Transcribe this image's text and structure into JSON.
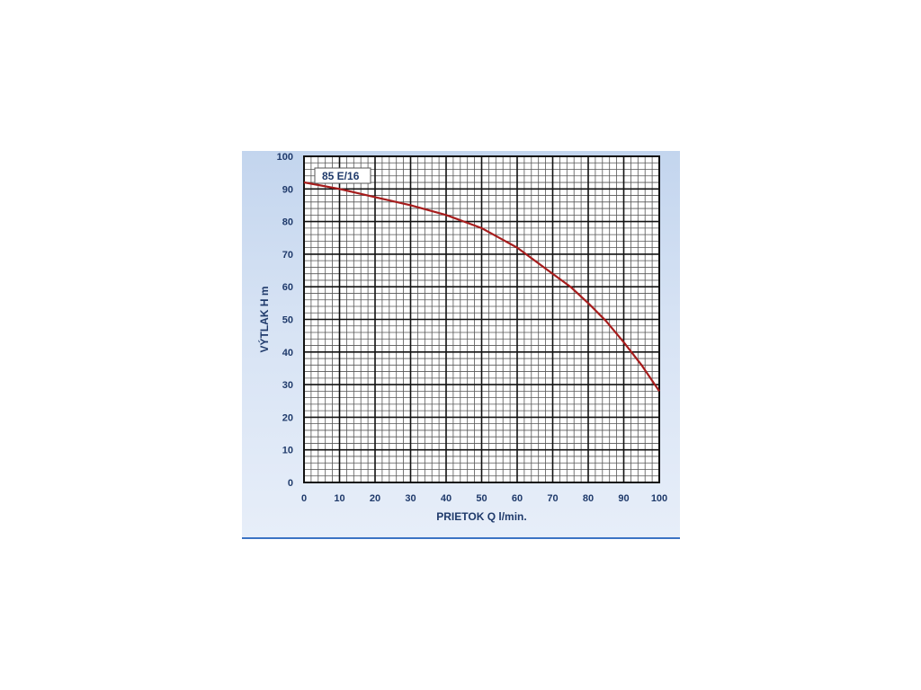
{
  "chart_data": {
    "type": "line",
    "xlabel": "PRIETOK  Q  l/min.",
    "ylabel": "VÝTLAK  H  m",
    "xlim": [
      0,
      100
    ],
    "ylim": [
      0,
      100
    ],
    "x_ticks": [
      "0",
      "10",
      "20",
      "30",
      "40",
      "50",
      "60",
      "70",
      "80",
      "90",
      "100"
    ],
    "y_ticks": [
      "0",
      "10",
      "20",
      "30",
      "40",
      "50",
      "60",
      "70",
      "80",
      "90",
      "100"
    ],
    "grid": true,
    "minor_grid_per_major": 5,
    "legend_placement": "top-left",
    "series": [
      {
        "name": "85 E/16",
        "color": "#a61c1c",
        "x": [
          0,
          10,
          20,
          30,
          40,
          45,
          50,
          55,
          60,
          65,
          70,
          75,
          80,
          85,
          90,
          95,
          100
        ],
        "y": [
          92,
          90,
          87.5,
          85,
          82,
          80,
          78,
          75,
          72,
          68,
          64,
          60,
          55,
          49.5,
          43,
          36,
          28
        ]
      }
    ],
    "colors": {
      "panel_background": "#d3e0f3",
      "plot_background": "#ffffff",
      "grid_major": "#111111",
      "grid_minor": "#555555",
      "text": "#1f3a6b",
      "rule": "#3b73c4"
    }
  }
}
